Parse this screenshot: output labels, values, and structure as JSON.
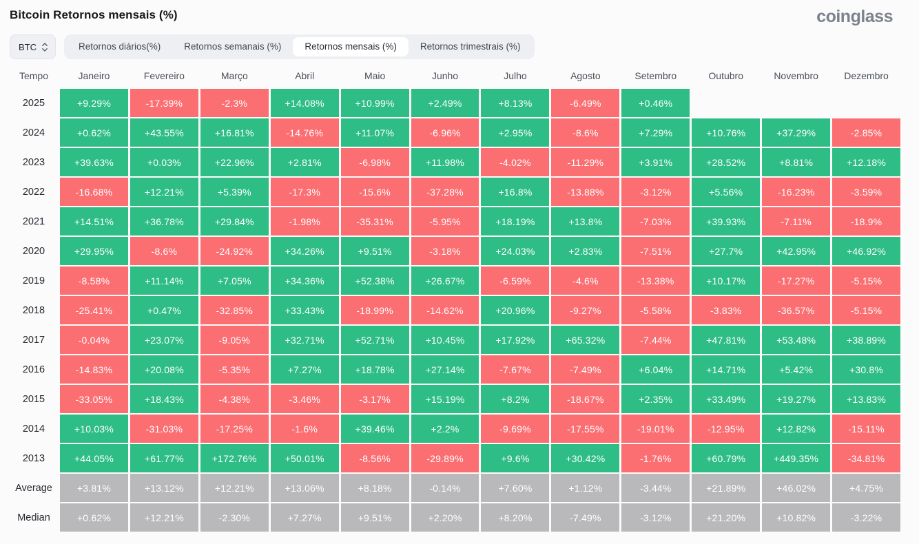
{
  "page": {
    "logo": "coinglass"
  },
  "colors": {
    "positive": "#2ebd85",
    "negative": "#fb6e72",
    "summary": "#b9b9bb"
  },
  "controls": {
    "coin_selector": {
      "value": "BTC",
      "icon": "updown-chevron-icon"
    },
    "tabs": [
      {
        "label": "Retornos diários(%)",
        "active": false
      },
      {
        "label": "Retornos semanais (%)",
        "active": false
      },
      {
        "label": "Retornos mensais (%)",
        "active": true
      },
      {
        "label": "Retornos trimestrais (%)",
        "active": false
      }
    ]
  },
  "chart_data": {
    "type": "heatmap",
    "title": "Bitcoin Retornos mensais (%)",
    "unit": "%",
    "time_column_label": "Tempo",
    "columns": [
      "Janeiro",
      "Fevereiro",
      "Março",
      "Abril",
      "Maio",
      "Junho",
      "Julho",
      "Agosto",
      "Setembro",
      "Outubro",
      "Novembro",
      "Dezembro"
    ],
    "legend": {
      "positive": "green",
      "negative": "red",
      "summary": "gray"
    },
    "rows": [
      {
        "label": "2025",
        "type": "year",
        "values": [
          "+9.29%",
          "-17.39%",
          "-2.3%",
          "+14.08%",
          "+10.99%",
          "+2.49%",
          "+8.13%",
          "-6.49%",
          "+0.46%",
          null,
          null,
          null
        ]
      },
      {
        "label": "2024",
        "type": "year",
        "values": [
          "+0.62%",
          "+43.55%",
          "+16.81%",
          "-14.76%",
          "+11.07%",
          "-6.96%",
          "+2.95%",
          "-8.6%",
          "+7.29%",
          "+10.76%",
          "+37.29%",
          "-2.85%"
        ]
      },
      {
        "label": "2023",
        "type": "year",
        "values": [
          "+39.63%",
          "+0.03%",
          "+22.96%",
          "+2.81%",
          "-6.98%",
          "+11.98%",
          "-4.02%",
          "-11.29%",
          "+3.91%",
          "+28.52%",
          "+8.81%",
          "+12.18%"
        ]
      },
      {
        "label": "2022",
        "type": "year",
        "values": [
          "-16.68%",
          "+12.21%",
          "+5.39%",
          "-17.3%",
          "-15.6%",
          "-37.28%",
          "+16.8%",
          "-13.88%",
          "-3.12%",
          "+5.56%",
          "-16.23%",
          "-3.59%"
        ]
      },
      {
        "label": "2021",
        "type": "year",
        "values": [
          "+14.51%",
          "+36.78%",
          "+29.84%",
          "-1.98%",
          "-35.31%",
          "-5.95%",
          "+18.19%",
          "+13.8%",
          "-7.03%",
          "+39.93%",
          "-7.11%",
          "-18.9%"
        ]
      },
      {
        "label": "2020",
        "type": "year",
        "values": [
          "+29.95%",
          "-8.6%",
          "-24.92%",
          "+34.26%",
          "+9.51%",
          "-3.18%",
          "+24.03%",
          "+2.83%",
          "-7.51%",
          "+27.7%",
          "+42.95%",
          "+46.92%"
        ]
      },
      {
        "label": "2019",
        "type": "year",
        "values": [
          "-8.58%",
          "+11.14%",
          "+7.05%",
          "+34.36%",
          "+52.38%",
          "+26.67%",
          "-6.59%",
          "-4.6%",
          "-13.38%",
          "+10.17%",
          "-17.27%",
          "-5.15%"
        ]
      },
      {
        "label": "2018",
        "type": "year",
        "values": [
          "-25.41%",
          "+0.47%",
          "-32.85%",
          "+33.43%",
          "-18.99%",
          "-14.62%",
          "+20.96%",
          "-9.27%",
          "-5.58%",
          "-3.83%",
          "-36.57%",
          "-5.15%"
        ]
      },
      {
        "label": "2017",
        "type": "year",
        "values": [
          "-0.04%",
          "+23.07%",
          "-9.05%",
          "+32.71%",
          "+52.71%",
          "+10.45%",
          "+17.92%",
          "+65.32%",
          "-7.44%",
          "+47.81%",
          "+53.48%",
          "+38.89%"
        ]
      },
      {
        "label": "2016",
        "type": "year",
        "values": [
          "-14.83%",
          "+20.08%",
          "-5.35%",
          "+7.27%",
          "+18.78%",
          "+27.14%",
          "-7.67%",
          "-7.49%",
          "+6.04%",
          "+14.71%",
          "+5.42%",
          "+30.8%"
        ]
      },
      {
        "label": "2015",
        "type": "year",
        "values": [
          "-33.05%",
          "+18.43%",
          "-4.38%",
          "-3.46%",
          "-3.17%",
          "+15.19%",
          "+8.2%",
          "-18.67%",
          "+2.35%",
          "+33.49%",
          "+19.27%",
          "+13.83%"
        ]
      },
      {
        "label": "2014",
        "type": "year",
        "values": [
          "+10.03%",
          "-31.03%",
          "-17.25%",
          "-1.6%",
          "+39.46%",
          "+2.2%",
          "-9.69%",
          "-17.55%",
          "-19.01%",
          "-12.95%",
          "+12.82%",
          "-15.11%"
        ]
      },
      {
        "label": "2013",
        "type": "year",
        "values": [
          "+44.05%",
          "+61.77%",
          "+172.76%",
          "+50.01%",
          "-8.56%",
          "-29.89%",
          "+9.6%",
          "+30.42%",
          "-1.76%",
          "+60.79%",
          "+449.35%",
          "-34.81%"
        ]
      },
      {
        "label": "Average",
        "type": "summary",
        "values": [
          "+3.81%",
          "+13.12%",
          "+12.21%",
          "+13.06%",
          "+8.18%",
          "-0.14%",
          "+7.60%",
          "+1.12%",
          "-3.44%",
          "+21.89%",
          "+46.02%",
          "+4.75%"
        ]
      },
      {
        "label": "Median",
        "type": "summary",
        "values": [
          "+0.62%",
          "+12.21%",
          "-2.30%",
          "+7.27%",
          "+9.51%",
          "+2.20%",
          "+8.20%",
          "-7.49%",
          "-3.12%",
          "+21.20%",
          "+10.82%",
          "-3.22%"
        ]
      }
    ]
  }
}
